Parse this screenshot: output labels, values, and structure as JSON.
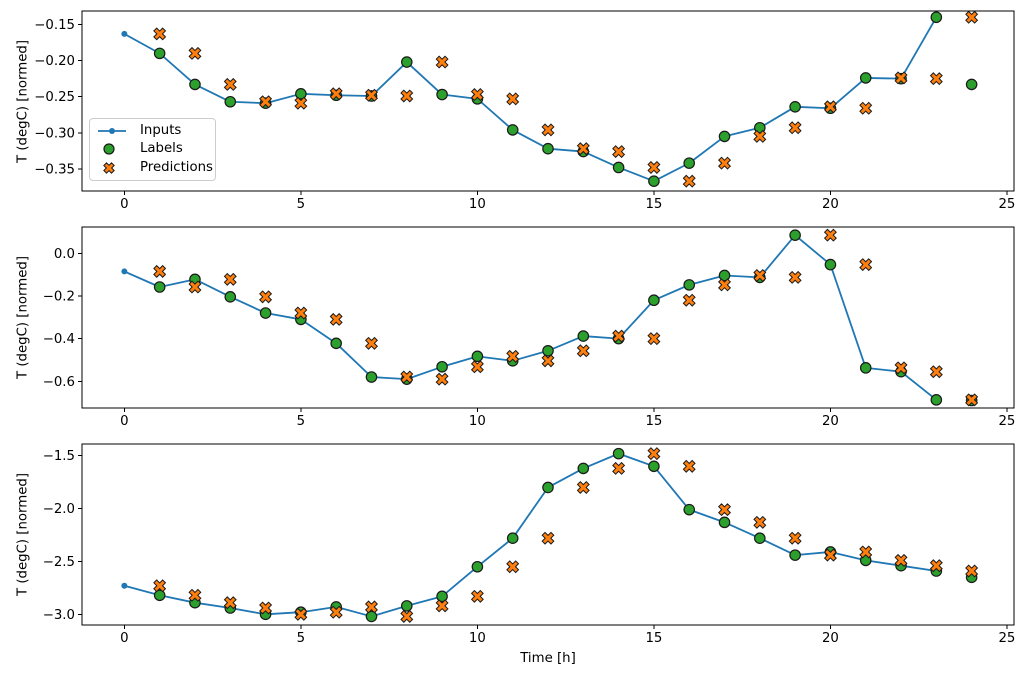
{
  "figure": {
    "xlabel": "Time [h]",
    "ylabel": "T (degC) [normed]",
    "legend": {
      "position": "upper left of first subplot",
      "items": [
        "Inputs",
        "Labels",
        "Predictions"
      ]
    },
    "colors": {
      "inputs": "#1f77b4",
      "labels": "#2ca02c",
      "predictions": "#ff7f0e",
      "marker_edge": "#1a1a1a",
      "axis": "#000000",
      "legend_border": "#cccccc",
      "background": "#ffffff"
    }
  },
  "chart_data": [
    {
      "type": "line",
      "title": "",
      "xlabel": "",
      "ylabel": "T (degC) [normed]",
      "xlim": [
        -1.2,
        25.2
      ],
      "ylim": [
        -0.3806,
        -0.1313
      ],
      "grid": false,
      "xticks": {
        "values": [
          0,
          5,
          10,
          15,
          20,
          25
        ],
        "labels": [
          "0",
          "5",
          "10",
          "15",
          "20",
          "25"
        ]
      },
      "yticks": {
        "values": [
          -0.15,
          -0.2,
          -0.25,
          -0.3,
          -0.35
        ],
        "labels": [
          "−0.15",
          "−0.20",
          "−0.25",
          "−0.30",
          "−0.35"
        ]
      },
      "series": [
        {
          "name": "Inputs",
          "style": "line",
          "marker": "dot",
          "color": "#1f77b4",
          "x": [
            0,
            1,
            2,
            3,
            4,
            5,
            6,
            7,
            8,
            9,
            10,
            11,
            12,
            13,
            14,
            15,
            16,
            17,
            18,
            19,
            20,
            21,
            22,
            23
          ],
          "y": [
            -0.163,
            -0.19,
            -0.233,
            -0.257,
            -0.259,
            -0.246,
            -0.248,
            -0.249,
            -0.202,
            -0.247,
            -0.253,
            -0.296,
            -0.322,
            -0.326,
            -0.348,
            -0.367,
            -0.342,
            -0.305,
            -0.293,
            -0.264,
            -0.266,
            -0.224,
            -0.225,
            -0.14
          ]
        },
        {
          "name": "Labels",
          "style": "scatter",
          "marker": "circle",
          "color": "#2ca02c",
          "x": [
            1,
            2,
            3,
            4,
            5,
            6,
            7,
            8,
            9,
            10,
            11,
            12,
            13,
            14,
            15,
            16,
            17,
            18,
            19,
            20,
            21,
            22,
            23,
            24
          ],
          "y": [
            -0.19,
            -0.233,
            -0.257,
            -0.259,
            -0.246,
            -0.248,
            -0.249,
            -0.202,
            -0.247,
            -0.253,
            -0.296,
            -0.322,
            -0.326,
            -0.348,
            -0.367,
            -0.342,
            -0.305,
            -0.293,
            -0.264,
            -0.266,
            -0.224,
            -0.225,
            -0.14,
            -0.233
          ]
        },
        {
          "name": "Predictions",
          "style": "scatter",
          "marker": "X",
          "color": "#ff7f0e",
          "x": [
            1,
            2,
            3,
            4,
            5,
            6,
            7,
            8,
            9,
            10,
            11,
            12,
            13,
            14,
            15,
            16,
            17,
            18,
            19,
            20,
            21,
            22,
            23,
            24
          ],
          "y": [
            -0.163,
            -0.19,
            -0.233,
            -0.257,
            -0.259,
            -0.246,
            -0.248,
            -0.249,
            -0.202,
            -0.247,
            -0.253,
            -0.296,
            -0.322,
            -0.326,
            -0.348,
            -0.367,
            -0.342,
            -0.305,
            -0.293,
            -0.264,
            -0.266,
            -0.224,
            -0.225,
            -0.14
          ]
        }
      ]
    },
    {
      "type": "line",
      "title": "",
      "xlabel": "",
      "ylabel": "T (degC) [normed]",
      "xlim": [
        -1.2,
        25.2
      ],
      "ylim": [
        -0.7252,
        0.1233
      ],
      "grid": false,
      "xticks": {
        "values": [
          0,
          5,
          10,
          15,
          20,
          25
        ],
        "labels": [
          "0",
          "5",
          "10",
          "15",
          "20",
          "25"
        ]
      },
      "yticks": {
        "values": [
          0.0,
          -0.2,
          -0.4,
          -0.6
        ],
        "labels": [
          "0.0",
          "−0.2",
          "−0.4",
          "−0.6"
        ]
      },
      "series": [
        {
          "name": "Inputs",
          "style": "line",
          "marker": "dot",
          "color": "#1f77b4",
          "x": [
            0,
            1,
            2,
            3,
            4,
            5,
            6,
            7,
            8,
            9,
            10,
            11,
            12,
            13,
            14,
            15,
            16,
            17,
            18,
            19,
            20,
            21,
            22,
            23
          ],
          "y": [
            -0.085,
            -0.158,
            -0.122,
            -0.204,
            -0.28,
            -0.31,
            -0.422,
            -0.58,
            -0.59,
            -0.532,
            -0.483,
            -0.504,
            -0.457,
            -0.388,
            -0.4,
            -0.22,
            -0.148,
            -0.104,
            -0.113,
            0.085,
            -0.053,
            -0.537,
            -0.555,
            -0.687
          ]
        },
        {
          "name": "Labels",
          "style": "scatter",
          "marker": "circle",
          "color": "#2ca02c",
          "x": [
            1,
            2,
            3,
            4,
            5,
            6,
            7,
            8,
            9,
            10,
            11,
            12,
            13,
            14,
            15,
            16,
            17,
            18,
            19,
            20,
            21,
            22,
            23,
            24
          ],
          "y": [
            -0.158,
            -0.122,
            -0.204,
            -0.28,
            -0.31,
            -0.422,
            -0.58,
            -0.59,
            -0.532,
            -0.483,
            -0.504,
            -0.457,
            -0.388,
            -0.4,
            -0.22,
            -0.148,
            -0.104,
            -0.113,
            0.085,
            -0.053,
            -0.537,
            -0.555,
            -0.687,
            -0.69
          ]
        },
        {
          "name": "Predictions",
          "style": "scatter",
          "marker": "X",
          "color": "#ff7f0e",
          "x": [
            1,
            2,
            3,
            4,
            5,
            6,
            7,
            8,
            9,
            10,
            11,
            12,
            13,
            14,
            15,
            16,
            17,
            18,
            19,
            20,
            21,
            22,
            23,
            24
          ],
          "y": [
            -0.085,
            -0.158,
            -0.122,
            -0.204,
            -0.28,
            -0.31,
            -0.422,
            -0.58,
            -0.59,
            -0.532,
            -0.483,
            -0.504,
            -0.457,
            -0.388,
            -0.4,
            -0.22,
            -0.148,
            -0.104,
            -0.113,
            0.085,
            -0.053,
            -0.537,
            -0.555,
            -0.687
          ]
        }
      ]
    },
    {
      "type": "line",
      "title": "",
      "xlabel": "Time [h]",
      "ylabel": "T (degC) [normed]",
      "xlim": [
        -1.2,
        25.2
      ],
      "ylim": [
        -3.101,
        -1.389
      ],
      "grid": false,
      "xticks": {
        "values": [
          0,
          5,
          10,
          15,
          20,
          25
        ],
        "labels": [
          "0",
          "5",
          "10",
          "15",
          "20",
          "25"
        ]
      },
      "yticks": {
        "values": [
          -1.5,
          -2.0,
          -2.5,
          -3.0
        ],
        "labels": [
          "−1.5",
          "−2.0",
          "−2.5",
          "−3.0"
        ]
      },
      "series": [
        {
          "name": "Inputs",
          "style": "line",
          "marker": "dot",
          "color": "#1f77b4",
          "x": [
            0,
            1,
            2,
            3,
            4,
            5,
            6,
            7,
            8,
            9,
            10,
            11,
            12,
            13,
            14,
            15,
            16,
            17,
            18,
            19,
            20,
            21,
            22,
            23
          ],
          "y": [
            -2.73,
            -2.82,
            -2.89,
            -2.94,
            -3.0,
            -2.98,
            -2.93,
            -3.02,
            -2.92,
            -2.83,
            -2.55,
            -2.28,
            -1.8,
            -1.62,
            -1.48,
            -1.6,
            -2.01,
            -2.13,
            -2.28,
            -2.44,
            -2.41,
            -2.49,
            -2.54,
            -2.59
          ]
        },
        {
          "name": "Labels",
          "style": "scatter",
          "marker": "circle",
          "color": "#2ca02c",
          "x": [
            1,
            2,
            3,
            4,
            5,
            6,
            7,
            8,
            9,
            10,
            11,
            12,
            13,
            14,
            15,
            16,
            17,
            18,
            19,
            20,
            21,
            22,
            23,
            24
          ],
          "y": [
            -2.82,
            -2.89,
            -2.94,
            -3.0,
            -2.98,
            -2.93,
            -3.02,
            -2.92,
            -2.83,
            -2.55,
            -2.28,
            -1.8,
            -1.62,
            -1.48,
            -1.6,
            -2.01,
            -2.13,
            -2.28,
            -2.44,
            -2.41,
            -2.49,
            -2.54,
            -2.59,
            -2.65
          ]
        },
        {
          "name": "Predictions",
          "style": "scatter",
          "marker": "X",
          "color": "#ff7f0e",
          "x": [
            1,
            2,
            3,
            4,
            5,
            6,
            7,
            8,
            9,
            10,
            11,
            12,
            13,
            14,
            15,
            16,
            17,
            18,
            19,
            20,
            21,
            22,
            23,
            24
          ],
          "y": [
            -2.73,
            -2.82,
            -2.89,
            -2.94,
            -3.0,
            -2.98,
            -2.93,
            -3.02,
            -2.92,
            -2.83,
            -2.55,
            -2.28,
            -1.8,
            -1.62,
            -1.48,
            -1.6,
            -2.01,
            -2.13,
            -2.28,
            -2.44,
            -2.41,
            -2.49,
            -2.54,
            -2.59
          ]
        }
      ]
    }
  ]
}
